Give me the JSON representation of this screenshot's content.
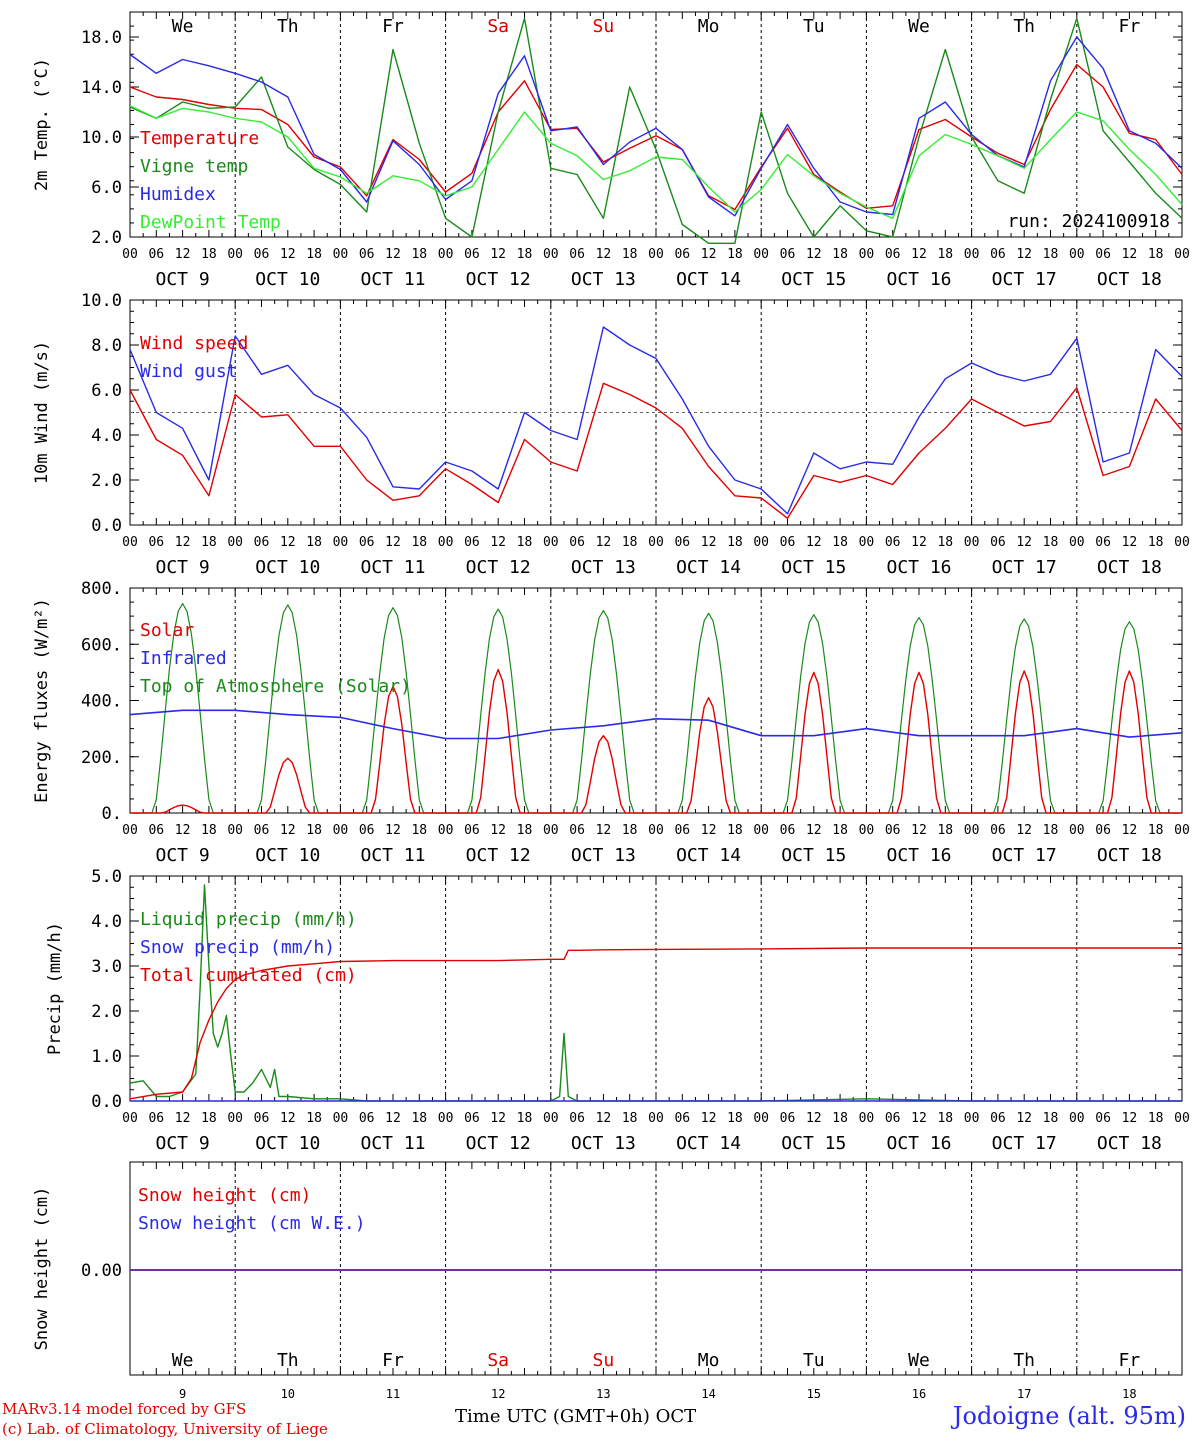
{
  "days": [
    "We",
    "Th",
    "Fr",
    "Sa",
    "Su",
    "Mo",
    "Tu",
    "We",
    "Th",
    "Fr"
  ],
  "day_colors": [
    "#000000",
    "#000000",
    "#000000",
    "#e00000",
    "#e00000",
    "#000000",
    "#000000",
    "#000000",
    "#000000",
    "#000000"
  ],
  "dates": [
    "OCT  9",
    "OCT 10",
    "OCT 11",
    "OCT 12",
    "OCT 13",
    "OCT 14",
    "OCT 15",
    "OCT 16",
    "OCT 17",
    "OCT 18"
  ],
  "date_numbers": [
    "9",
    "10",
    "11",
    "12",
    "13",
    "14",
    "15",
    "16",
    "17",
    "18"
  ],
  "hour_ticks": [
    "00",
    "06",
    "12",
    "18"
  ],
  "run_label": "run: 2024100918",
  "footer": {
    "model": "MARv3.14 model forced by GFS",
    "lab": "(c) Lab. of Climatology, University of Liege",
    "xlabel": "Time UTC (GMT+0h) OCT",
    "station": "Jodoigne (alt. 95m)"
  },
  "colors": {
    "red": "#e00000",
    "blue": "#2a2ae8",
    "green": "#1a8a1a",
    "lightgreen": "#33ee33",
    "purple": "#7030a0"
  },
  "chart_data": [
    {
      "type": "line",
      "ylabel": "2m Temp. (°C)",
      "ylim": [
        2,
        20
      ],
      "yticks": [
        "2.0",
        "6.0",
        "10.0",
        "14.0",
        "18.0"
      ],
      "x_hours": [
        0,
        6,
        12,
        18,
        24,
        30,
        36,
        42,
        48,
        54,
        60,
        66,
        72,
        78,
        84,
        90,
        96,
        102,
        108,
        114,
        120,
        126,
        132,
        138,
        144,
        150,
        156,
        162,
        168,
        174,
        180,
        186,
        192,
        198,
        204,
        210,
        216,
        222,
        228,
        234,
        240
      ],
      "series": [
        {
          "name": "Temperature",
          "color": "red",
          "values": [
            14.0,
            13.2,
            13.0,
            12.6,
            12.3,
            12.2,
            11.0,
            8.4,
            7.6,
            5.3,
            9.8,
            8.2,
            5.6,
            7.1,
            12.0,
            14.5,
            10.6,
            10.7,
            8.0,
            9.1,
            10.1,
            9.0,
            5.3,
            4.2,
            7.6,
            10.7,
            7.0,
            5.6,
            4.3,
            4.5,
            10.6,
            11.4,
            10.0,
            8.7,
            7.8,
            12.2,
            15.8,
            14.0,
            10.3,
            9.8,
            7.0
          ]
        },
        {
          "name": "Vigne temp",
          "color": "green",
          "values": [
            12.4,
            11.5,
            12.8,
            12.3,
            12.4,
            14.8,
            9.2,
            7.4,
            6.2,
            4.0,
            17.0,
            9.5,
            3.5,
            2.0,
            12.0,
            19.5,
            7.5,
            7.0,
            3.5,
            14.0,
            9.0,
            3.0,
            1.5,
            1.5,
            12.0,
            5.5,
            2.0,
            4.5,
            2.5,
            2.0,
            10.0,
            17.0,
            10.0,
            6.5,
            5.5,
            13.0,
            19.5,
            10.5,
            8.0,
            5.5,
            3.5
          ]
        },
        {
          "name": "Humidex",
          "color": "blue",
          "values": [
            16.6,
            15.1,
            16.2,
            15.7,
            15.1,
            14.4,
            13.2,
            8.6,
            7.4,
            4.8,
            9.7,
            7.8,
            5.0,
            6.5,
            13.5,
            16.5,
            10.5,
            10.8,
            7.8,
            9.6,
            10.7,
            9.0,
            5.2,
            3.7,
            7.5,
            11.0,
            7.5,
            4.8,
            4.0,
            3.8,
            11.5,
            12.8,
            10.2,
            8.5,
            7.6,
            14.5,
            18.0,
            15.5,
            10.5,
            9.5,
            7.5
          ]
        },
        {
          "name": "DewPoint Temp",
          "color": "lightgreen",
          "values": [
            12.5,
            11.5,
            12.3,
            12.0,
            11.5,
            11.2,
            10.0,
            7.5,
            6.8,
            5.5,
            6.9,
            6.5,
            5.3,
            6.0,
            9.0,
            12.0,
            9.5,
            8.5,
            6.6,
            7.3,
            8.4,
            8.2,
            6.0,
            4.0,
            5.8,
            8.6,
            6.9,
            5.5,
            4.4,
            3.5,
            8.5,
            10.2,
            9.4,
            8.5,
            7.5,
            9.8,
            12.0,
            11.3,
            9.0,
            7.0,
            4.6
          ]
        }
      ]
    },
    {
      "type": "line",
      "ylabel": "10m Wind (m/s)",
      "ylim": [
        0,
        10
      ],
      "yticks": [
        "0.0",
        "2.0",
        "4.0",
        "6.0",
        "8.0",
        "10.0"
      ],
      "ref_line": 5,
      "x_hours": [
        0,
        6,
        12,
        18,
        24,
        30,
        36,
        42,
        48,
        54,
        60,
        66,
        72,
        78,
        84,
        90,
        96,
        102,
        108,
        114,
        120,
        126,
        132,
        138,
        144,
        150,
        156,
        162,
        168,
        174,
        180,
        186,
        192,
        198,
        204,
        210,
        216,
        222,
        228,
        234,
        240
      ],
      "series": [
        {
          "name": "Wind speed",
          "color": "red",
          "values": [
            6.0,
            3.8,
            3.1,
            1.3,
            5.8,
            4.8,
            4.9,
            3.5,
            3.5,
            2.0,
            1.1,
            1.3,
            2.5,
            1.8,
            1.0,
            3.8,
            2.8,
            2.4,
            6.3,
            5.8,
            5.2,
            4.3,
            2.6,
            1.3,
            1.2,
            0.3,
            2.2,
            1.9,
            2.2,
            1.8,
            3.2,
            4.3,
            5.6,
            5.0,
            4.4,
            4.6,
            6.1,
            2.2,
            2.6,
            5.6,
            4.2
          ]
        },
        {
          "name": "Wind gust",
          "color": "blue",
          "values": [
            7.8,
            5.0,
            4.3,
            2.0,
            8.4,
            6.7,
            7.1,
            5.8,
            5.2,
            3.9,
            1.7,
            1.6,
            2.8,
            2.4,
            1.6,
            5.0,
            4.2,
            3.8,
            8.8,
            8.0,
            7.4,
            5.6,
            3.5,
            2.0,
            1.6,
            0.5,
            3.2,
            2.5,
            2.8,
            2.7,
            4.8,
            6.5,
            7.2,
            6.7,
            6.4,
            6.7,
            8.3,
            2.8,
            3.2,
            7.8,
            6.6
          ]
        }
      ]
    },
    {
      "type": "line",
      "ylabel": "Energy fluxes (W/m²)",
      "ylim": [
        0,
        800
      ],
      "yticks": [
        "0.",
        "200.",
        "400.",
        "600.",
        "800."
      ],
      "days_count": 10,
      "toa_peaks": [
        745,
        740,
        730,
        725,
        720,
        710,
        705,
        695,
        690,
        680
      ],
      "solar_peaks": [
        28,
        195,
        450,
        510,
        275,
        410,
        500,
        500,
        505,
        505
      ],
      "series": [
        {
          "name": "Solar",
          "color": "red"
        },
        {
          "name": "Infrared",
          "color": "blue",
          "x_hours": [
            0,
            12,
            24,
            36,
            48,
            60,
            72,
            84,
            96,
            108,
            120,
            132,
            144,
            156,
            168,
            180,
            192,
            204,
            216,
            228,
            240
          ],
          "values": [
            350,
            365,
            365,
            350,
            340,
            300,
            265,
            265,
            295,
            310,
            335,
            330,
            275,
            275,
            300,
            275,
            275,
            275,
            300,
            270,
            285
          ]
        },
        {
          "name": "Top of Atmosphere (Solar)",
          "color": "green"
        }
      ]
    },
    {
      "type": "line",
      "ylabel": "Precip (mm/h)",
      "ylim": [
        0,
        5
      ],
      "yticks": [
        "0.0",
        "1.0",
        "2.0",
        "3.0",
        "4.0",
        "5.0"
      ],
      "series": [
        {
          "name": "Liquid precip (mm/h)",
          "color": "green",
          "x_hours": [
            0,
            3,
            6,
            9,
            12,
            15,
            16,
            17,
            18,
            19,
            20,
            21,
            22,
            23,
            24,
            26,
            28,
            30,
            32,
            33,
            34,
            36,
            42,
            48,
            54,
            60,
            66,
            72,
            90,
            96,
            98,
            99,
            100,
            102,
            108,
            120,
            144,
            168,
            192,
            216,
            240
          ],
          "values": [
            0.4,
            0.45,
            0.1,
            0.1,
            0.2,
            0.6,
            2.5,
            4.8,
            3.0,
            1.5,
            1.2,
            1.5,
            1.9,
            1.0,
            0.2,
            0.2,
            0.4,
            0.7,
            0.3,
            0.7,
            0.1,
            0.1,
            0.05,
            0.05,
            0.0,
            0.0,
            0.0,
            0.0,
            0.0,
            0.0,
            0.1,
            1.5,
            0.1,
            0.0,
            0.0,
            0.0,
            0.0,
            0.05,
            0.0,
            0.0,
            0.0
          ]
        },
        {
          "name": "Snow precip (mm/h)",
          "color": "blue",
          "x_hours": [
            0,
            240
          ],
          "values": [
            0,
            0
          ]
        },
        {
          "name": "Total cumulated (cm)",
          "color": "red",
          "x_hours": [
            0,
            6,
            12,
            14,
            16,
            18,
            20,
            22,
            24,
            26,
            30,
            36,
            42,
            48,
            60,
            72,
            84,
            96,
            99,
            100,
            102,
            108,
            120,
            144,
            168,
            192,
            216,
            240
          ],
          "values": [
            0.05,
            0.15,
            0.2,
            0.5,
            1.3,
            1.8,
            2.2,
            2.5,
            2.7,
            2.8,
            2.9,
            3.0,
            3.05,
            3.1,
            3.12,
            3.12,
            3.12,
            3.15,
            3.15,
            3.35,
            3.35,
            3.36,
            3.37,
            3.38,
            3.4,
            3.4,
            3.4,
            3.4
          ]
        }
      ]
    },
    {
      "type": "line",
      "ylabel": "Snow height (cm)",
      "yticks": [
        "0.00"
      ],
      "series": [
        {
          "name": "Snow height (cm)",
          "color": "red",
          "x_hours": [
            0,
            240
          ],
          "values": [
            0,
            0
          ]
        },
        {
          "name": "Snow height (cm W.E.)",
          "color": "blue",
          "x_hours": [
            0,
            240
          ],
          "values": [
            0,
            0
          ]
        }
      ]
    }
  ]
}
